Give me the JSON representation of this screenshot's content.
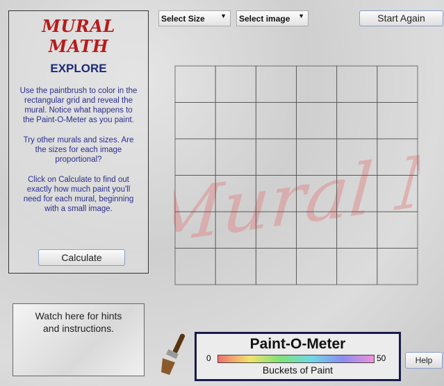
{
  "header": {
    "title": "MURAL MATH",
    "subtitle": "EXPLORE"
  },
  "instructions": {
    "paragraphs": [
      {
        "lines": [
          "Use the paintbrush to color in the",
          "rectangular grid and reveal the",
          "mural. Notice what happens to",
          "the Paint-O-Meter as you paint."
        ]
      },
      {
        "lines": [
          "Try other murals and sizes. Are",
          "the sizes for each image",
          "proportional?"
        ]
      },
      {
        "lines": [
          "Click on Calculate to find out",
          "exactly how much paint you'll",
          "need for each mural, beginning",
          "with a small image."
        ]
      }
    ]
  },
  "buttons": {
    "calculate": "Calculate",
    "start_again": "Start Again",
    "help": "Help"
  },
  "dropdowns": {
    "size": "Select Size",
    "image": "Select image"
  },
  "grid": {
    "watermark": "Mural Math"
  },
  "hints": {
    "lines": [
      "Watch here for hints",
      "and instructions."
    ]
  },
  "meter": {
    "title": "Paint-O-Meter",
    "min_label": "0",
    "max_label": "50",
    "caption": "Buckets of Paint"
  }
}
